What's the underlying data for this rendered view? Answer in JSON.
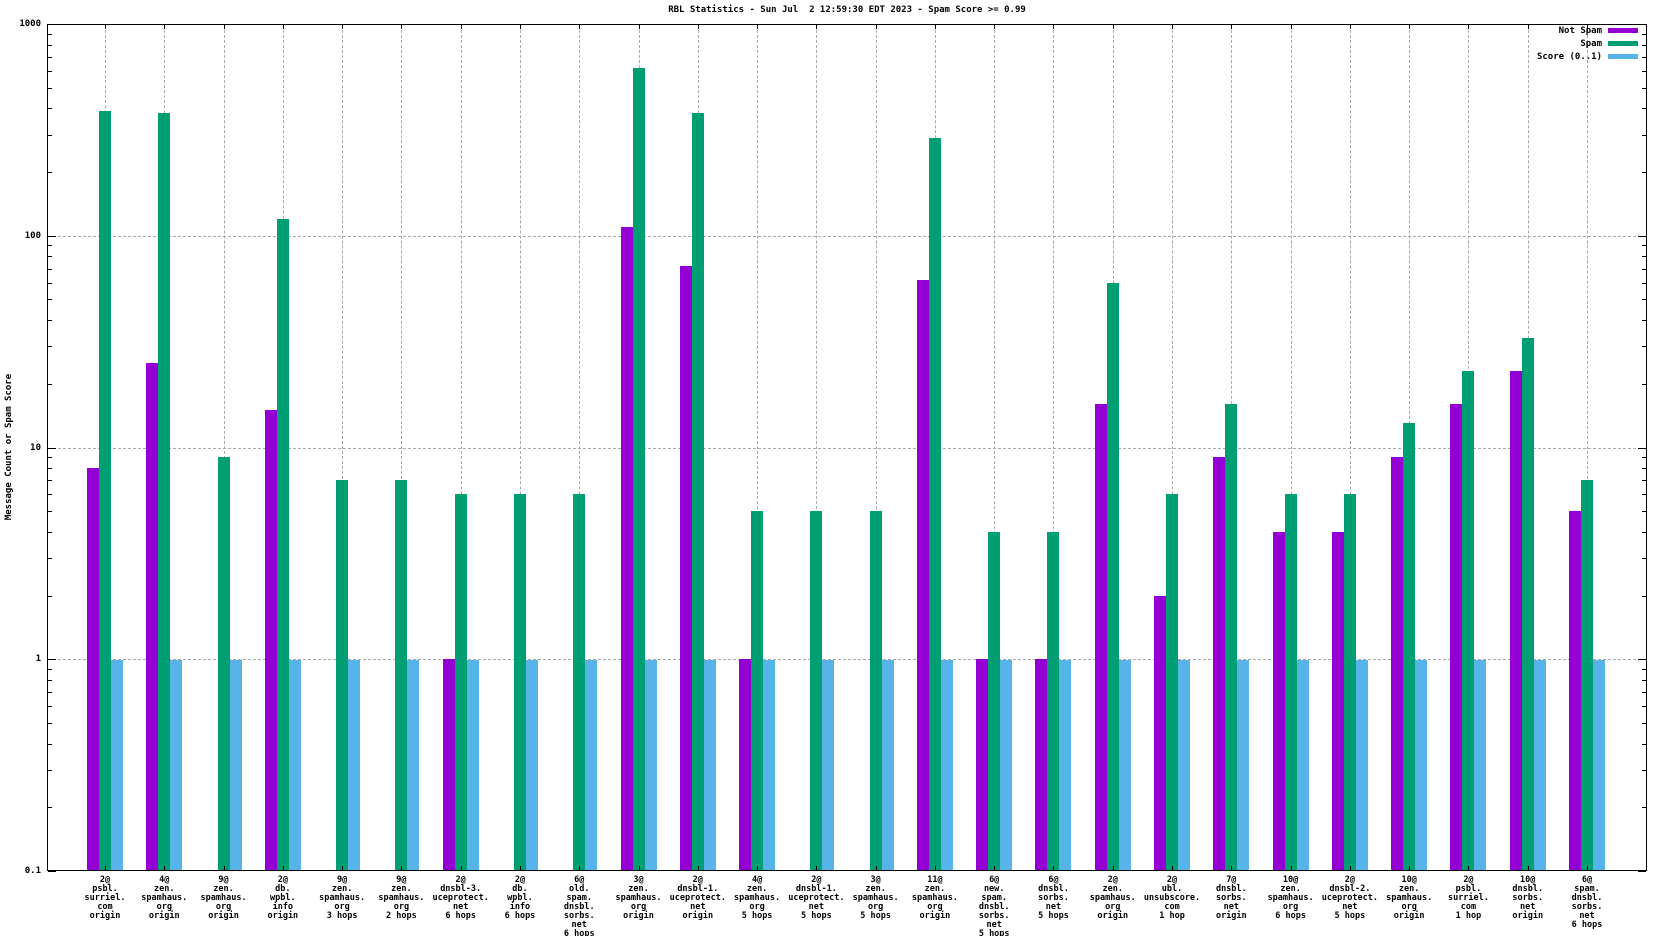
{
  "chart_data": {
    "type": "bar",
    "title": "RBL Statistics - Sun Jul  2 12:59:30 EDT 2023 - Spam Score >= 0.99",
    "ylabel": "Message Count or Spam Score",
    "xlabel": "",
    "yscale": "log",
    "ylim": [
      0.1,
      1000
    ],
    "ytick_values": [
      1000,
      100,
      10,
      1,
      0.1
    ],
    "ytick_labels": [
      "1000",
      "100",
      "10",
      "1",
      "0.1"
    ],
    "grid": true,
    "legend_position": "top-right",
    "legend": [
      {
        "name": "Not Spam",
        "color": "#9400d3"
      },
      {
        "name": "Spam",
        "color": "#009e73"
      },
      {
        "name": "Score (0..1)",
        "color": "#56b4e9"
      }
    ],
    "colors": {
      "not_spam": "#9400d3",
      "spam": "#009e73",
      "score": "#56b4e9",
      "grid": "#a9a9a9",
      "background": "#ffffff",
      "axis": "#000000"
    },
    "categories": [
      "2@ psbl.surriel.com origin",
      "4@ zen.spamhaus.org origin",
      "9@ zen.spamhaus.org origin",
      "2@ db.wpbl.info origin",
      "9@ zen.spamhaus.org 3 hops",
      "9@ zen.spamhaus.org 2 hops",
      "2@ dnsbl-3.uceprotect.net 6 hops",
      "2@ db.wpbl.info 6 hops",
      "6@ old.spam.dnsbl.sorbs.net 6 hops",
      "3@ zen.spamhaus.org origin",
      "2@ dnsbl-1.uceprotect.net origin",
      "4@ zen.spamhaus.org 5 hops",
      "2@ dnsbl-1.uceprotect.net 5 hops",
      "3@ zen.spamhaus.org 5 hops",
      "11@ zen.spamhaus.org origin",
      "6@ new.spam.dnsbl.sorbs.net 5 hops",
      "6@ dnsbl.sorbs.net 5 hops",
      "2@ zen.spamhaus.org origin",
      "2@ ubl.unsubscore.com 1 hop",
      "7@ dnsbl.sorbs.net origin",
      "10@ zen.spamhaus.org 6 hops",
      "2@ dnsbl-2.uceprotect.net 5 hops",
      "10@ zen.spamhaus.org origin",
      "2@ psbl.surriel.com 1 hop",
      "10@ dnsbl.sorbs.net origin",
      "6@ spam.dnsbl.sorbs.net 6 hops"
    ],
    "category_lines": [
      [
        "2@",
        "psbl.",
        "surriel.",
        "com",
        "origin"
      ],
      [
        "4@",
        "zen.",
        "spamhaus.",
        "org",
        "origin"
      ],
      [
        "9@",
        "zen.",
        "spamhaus.",
        "org",
        "origin"
      ],
      [
        "2@",
        "db.",
        "wpbl.",
        "info",
        "origin"
      ],
      [
        "9@",
        "zen.",
        "spamhaus.",
        "org",
        "3 hops"
      ],
      [
        "9@",
        "zen.",
        "spamhaus.",
        "org",
        "2 hops"
      ],
      [
        "2@",
        "dnsbl-3.",
        "uceprotect.",
        "net",
        "6 hops"
      ],
      [
        "2@",
        "db.",
        "wpbl.",
        "info",
        "6 hops"
      ],
      [
        "6@",
        "old.",
        "spam.",
        "dnsbl.",
        "sorbs.",
        "net",
        "6 hops"
      ],
      [
        "3@",
        "zen.",
        "spamhaus.",
        "org",
        "origin"
      ],
      [
        "2@",
        "dnsbl-1.",
        "uceprotect.",
        "net",
        "origin"
      ],
      [
        "4@",
        "zen.",
        "spamhaus.",
        "org",
        "5 hops"
      ],
      [
        "2@",
        "dnsbl-1.",
        "uceprotect.",
        "net",
        "5 hops"
      ],
      [
        "3@",
        "zen.",
        "spamhaus.",
        "org",
        "5 hops"
      ],
      [
        "11@",
        "zen.",
        "spamhaus.",
        "org",
        "origin"
      ],
      [
        "6@",
        "new.",
        "spam.",
        "dnsbl.",
        "sorbs.",
        "net",
        "5 hops"
      ],
      [
        "6@",
        "dnsbl.",
        "sorbs.",
        "net",
        "5 hops"
      ],
      [
        "2@",
        "zen.",
        "spamhaus.",
        "org",
        "origin"
      ],
      [
        "2@",
        "ubl.",
        "unsubscore.",
        "com",
        "1 hop"
      ],
      [
        "7@",
        "dnsbl.",
        "sorbs.",
        "net",
        "origin"
      ],
      [
        "10@",
        "zen.",
        "spamhaus.",
        "org",
        "6 hops"
      ],
      [
        "2@",
        "dnsbl-2.",
        "uceprotect.",
        "net",
        "5 hops"
      ],
      [
        "10@",
        "zen.",
        "spamhaus.",
        "org",
        "origin"
      ],
      [
        "2@",
        "psbl.",
        "surriel.",
        "com",
        "1 hop"
      ],
      [
        "10@",
        "dnsbl.",
        "sorbs.",
        "net",
        "origin"
      ],
      [
        "6@",
        "spam.",
        "dnsbl.",
        "sorbs.",
        "net",
        "6 hops"
      ]
    ],
    "series": [
      {
        "name": "Not Spam",
        "values": [
          8,
          25,
          0,
          15,
          0,
          0,
          1,
          0,
          0,
          110,
          72,
          1,
          0,
          0,
          62,
          1,
          1,
          16,
          2,
          9,
          4,
          4,
          9,
          16,
          23,
          5
        ]
      },
      {
        "name": "Spam",
        "values": [
          390,
          380,
          9,
          120,
          7,
          7,
          6,
          6,
          6,
          620,
          380,
          5,
          5,
          5,
          290,
          4,
          4,
          60,
          6,
          16,
          6,
          6,
          13,
          23,
          33,
          7
        ]
      },
      {
        "name": "Score (0..1)",
        "values": [
          0.99,
          0.99,
          0.99,
          0.99,
          0.99,
          0.99,
          0.99,
          0.99,
          0.99,
          0.99,
          0.99,
          0.99,
          0.99,
          0.99,
          0.99,
          0.99,
          0.99,
          0.99,
          0.99,
          0.99,
          0.99,
          0.99,
          0.99,
          0.99,
          0.99,
          0.99
        ]
      }
    ]
  }
}
